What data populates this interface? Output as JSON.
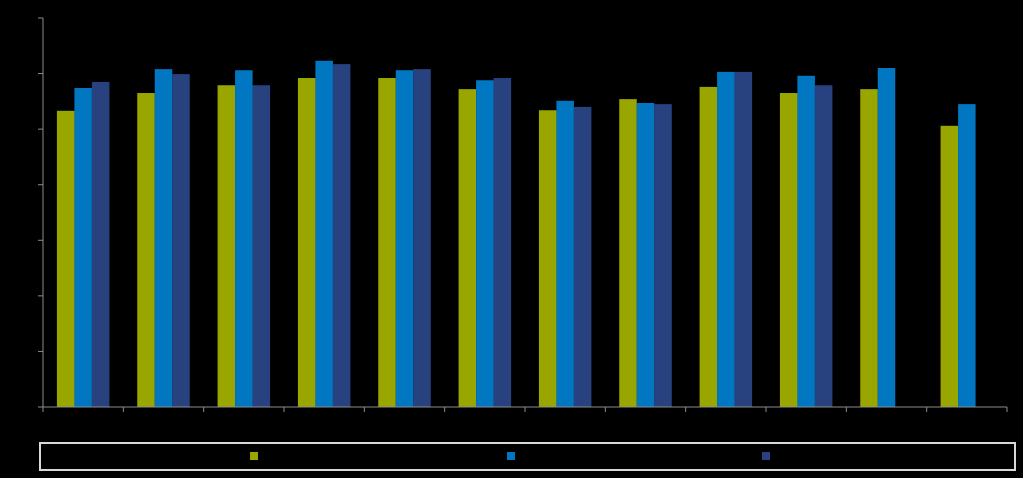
{
  "chart_data": {
    "type": "bar",
    "categories": [
      null,
      null,
      null,
      null,
      null,
      null,
      null,
      null,
      null,
      null,
      null,
      null
    ],
    "series": [
      {
        "color": "#9aa600",
        "values": [
          5.33,
          5.65,
          5.79,
          5.92,
          5.92,
          5.72,
          5.34,
          5.54,
          5.76,
          5.65,
          5.72,
          5.06
        ]
      },
      {
        "color": "#0077c0",
        "values": [
          5.74,
          6.08,
          6.06,
          6.23,
          6.06,
          5.88,
          5.51,
          5.47,
          6.03,
          5.96,
          6.1,
          5.45
        ]
      },
      {
        "color": "#27427f",
        "values": [
          5.85,
          5.99,
          5.79,
          6.17,
          6.08,
          5.92,
          5.4,
          5.45,
          6.03,
          5.79,
          null,
          null
        ]
      }
    ],
    "ylim": [
      0,
      7
    ],
    "yticks": [
      0,
      1,
      2,
      3,
      4,
      5,
      6,
      7
    ],
    "grid": false
  }
}
